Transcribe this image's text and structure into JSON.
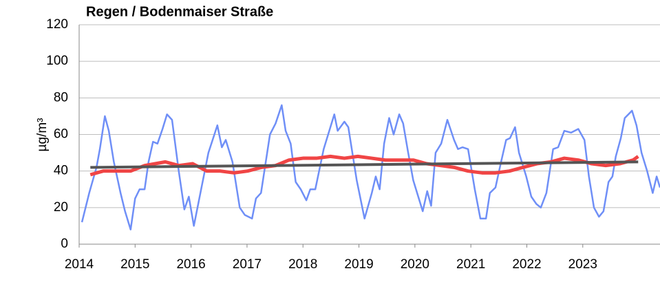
{
  "chart_data": {
    "type": "line",
    "title": "Regen / Bodenmaiser Straße",
    "y_label": "µg/m³",
    "xlim": [
      2014,
      2024.38
    ],
    "xticks": [
      2014,
      2015,
      2016,
      2017,
      2018,
      2019,
      2020,
      2021,
      2022,
      2023
    ],
    "ylim": [
      0,
      120
    ],
    "yticks": [
      0,
      20,
      40,
      60,
      80,
      100,
      120
    ],
    "grid": true,
    "series": [
      {
        "color": "#6f8ff7",
        "width": 2.5,
        "x": [
          2014.05,
          2014.18,
          2014.31,
          2014.37,
          2014.46,
          2014.53,
          2014.62,
          2014.74,
          2014.82,
          2014.92,
          2015.0,
          2015.08,
          2015.17,
          2015.24,
          2015.32,
          2015.4,
          2015.49,
          2015.57,
          2015.66,
          2015.78,
          2015.88,
          2015.96,
          2016.05,
          2016.18,
          2016.31,
          2016.47,
          2016.55,
          2016.62,
          2016.74,
          2016.87,
          2016.96,
          2017.09,
          2017.16,
          2017.25,
          2017.41,
          2017.51,
          2017.62,
          2017.69,
          2017.78,
          2017.87,
          2017.96,
          2018.06,
          2018.13,
          2018.22,
          2018.37,
          2018.56,
          2018.62,
          2018.74,
          2018.81,
          2018.96,
          2019.1,
          2019.23,
          2019.3,
          2019.37,
          2019.45,
          2019.54,
          2019.62,
          2019.72,
          2019.79,
          2019.88,
          2019.97,
          2020.05,
          2020.14,
          2020.22,
          2020.29,
          2020.37,
          2020.47,
          2020.58,
          2020.7,
          2020.77,
          2020.85,
          2020.95,
          2021.07,
          2021.17,
          2021.27,
          2021.34,
          2021.44,
          2021.54,
          2021.63,
          2021.7,
          2021.79,
          2021.86,
          2021.99,
          2022.08,
          2022.17,
          2022.25,
          2022.35,
          2022.47,
          2022.56,
          2022.67,
          2022.79,
          2022.92,
          2023.03,
          2023.11,
          2023.2,
          2023.29,
          2023.37,
          2023.46,
          2023.53,
          2023.59,
          2023.68,
          2023.75,
          2023.88,
          2023.96,
          2024.05,
          2024.15,
          2024.25,
          2024.32,
          2024.38
        ],
        "values": [
          12,
          28,
          42,
          52,
          70,
          62,
          45,
          28,
          18,
          8,
          25,
          30,
          30,
          45,
          56,
          55,
          63,
          71,
          68,
          40,
          19,
          26,
          10,
          30,
          50,
          65,
          53,
          57,
          45,
          20,
          16,
          14,
          25,
          28,
          60,
          66,
          76,
          62,
          55,
          34,
          30,
          24,
          30,
          30,
          52,
          71,
          62,
          67,
          64,
          35,
          14,
          28,
          37,
          30,
          55,
          69,
          60,
          71,
          66,
          50,
          35,
          27,
          18,
          29,
          21,
          50,
          55,
          68,
          57,
          52,
          53,
          52,
          30,
          14,
          14,
          28,
          31,
          45,
          57,
          58,
          64,
          50,
          37,
          26,
          22,
          20,
          28,
          52,
          53,
          62,
          61,
          63,
          57,
          37,
          20,
          15,
          18,
          34,
          37,
          48,
          58,
          69,
          73,
          65,
          50,
          40,
          28,
          37,
          31
        ]
      },
      {
        "color": "#f04545",
        "width": 5,
        "x": [
          2014.2,
          2014.43,
          2014.68,
          2014.92,
          2015.17,
          2015.54,
          2015.78,
          2016.03,
          2016.28,
          2016.52,
          2016.77,
          2017.01,
          2017.26,
          2017.51,
          2017.75,
          2018.0,
          2018.24,
          2018.49,
          2018.74,
          2018.98,
          2019.23,
          2019.47,
          2019.72,
          2019.97,
          2020.21,
          2020.46,
          2020.7,
          2020.95,
          2021.2,
          2021.44,
          2021.69,
          2021.93,
          2022.18,
          2022.43,
          2022.67,
          2022.92,
          2023.16,
          2023.41,
          2023.66,
          2023.9,
          2023.99
        ],
        "values": [
          38,
          40,
          40,
          40,
          43,
          45,
          43,
          44,
          40,
          40,
          39,
          40,
          42,
          43,
          46,
          47,
          47,
          48,
          47,
          48,
          47,
          46,
          46,
          46,
          44,
          43,
          42,
          40,
          39,
          39,
          40,
          42,
          44,
          45,
          47,
          46,
          44,
          43,
          44,
          46,
          48
        ]
      },
      {
        "color": "#555555",
        "width": 4,
        "x": [
          2014.2,
          2023.99
        ],
        "values": [
          42,
          45
        ]
      }
    ]
  }
}
